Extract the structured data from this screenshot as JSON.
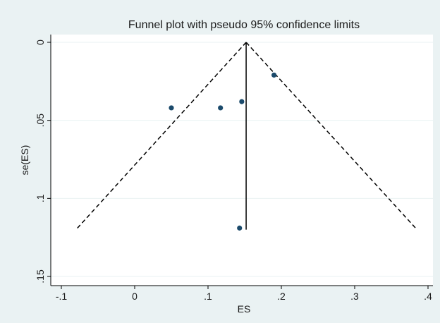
{
  "chart_data": {
    "type": "scatter",
    "title": "Funnel plot with pseudo 95% confidence limits",
    "xlabel": "ES",
    "ylabel": "se(ES)",
    "xlim": [
      -0.1,
      0.4
    ],
    "ylim": [
      0,
      0.15
    ],
    "y_reversed": true,
    "grid": "horizontal",
    "legend": "none",
    "x_ticks": [
      -0.1,
      0,
      0.1,
      0.2,
      0.3,
      0.4
    ],
    "x_tick_labels": [
      "-.1",
      "0",
      ".1",
      ".2",
      ".3",
      ".4"
    ],
    "y_ticks": [
      0,
      0.05,
      0.1,
      0.15
    ],
    "y_tick_labels": [
      "0",
      ".05",
      ".1",
      ".15"
    ],
    "points": [
      {
        "x": 0.05,
        "y": 0.042
      },
      {
        "x": 0.117,
        "y": 0.042
      },
      {
        "x": 0.146,
        "y": 0.038
      },
      {
        "x": 0.19,
        "y": 0.021
      },
      {
        "x": 0.143,
        "y": 0.119
      }
    ],
    "pooled_estimate": {
      "x": 0.152,
      "se_max": 0.12
    },
    "confidence_limits": {
      "left": [
        {
          "x": 0.152,
          "y": 0
        },
        {
          "x": -0.08,
          "y": 0.12
        }
      ],
      "right": [
        {
          "x": 0.152,
          "y": 0
        },
        {
          "x": 0.385,
          "y": 0.12
        }
      ]
    },
    "colors": {
      "plot_bg": "#ffffff",
      "outer_bg": "#eaf2f3",
      "grid": "#eaf2f3",
      "point": "#1b4a6b",
      "line": "#000000"
    }
  }
}
